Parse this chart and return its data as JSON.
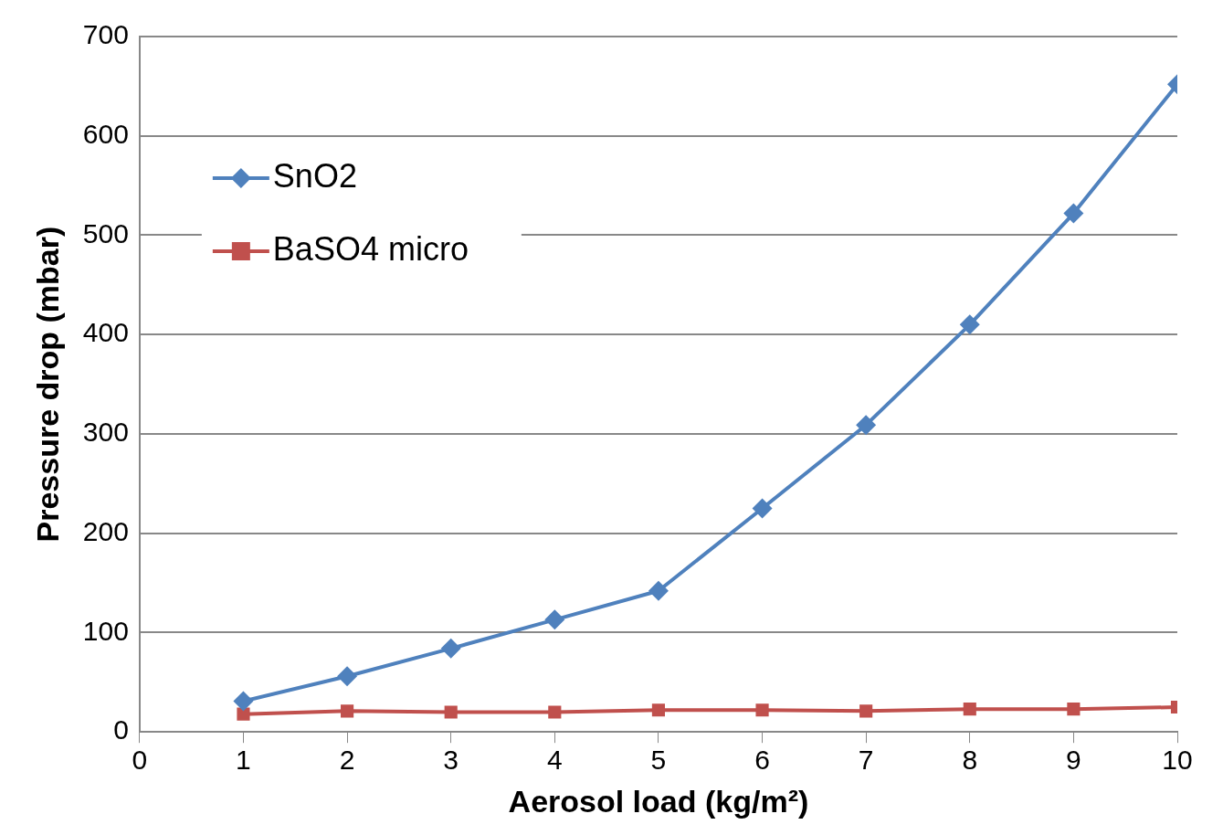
{
  "chart_data": {
    "type": "line",
    "xlabel": "Aerosol load (kg/m²)",
    "ylabel": "Pressure drop (mbar)",
    "x": [
      1,
      2,
      3,
      4,
      5,
      6,
      7,
      8,
      9,
      10
    ],
    "series": [
      {
        "name": "SnO2",
        "color": "#4f81bd",
        "marker": "diamond",
        "values": [
          31,
          56,
          84,
          113,
          142,
          225,
          309,
          410,
          522,
          652
        ]
      },
      {
        "name": "BaSO4 micro",
        "color": "#c0504d",
        "marker": "square",
        "values": [
          18,
          21,
          20,
          20,
          22,
          22,
          21,
          23,
          23,
          25
        ]
      }
    ],
    "xlim": [
      0,
      10
    ],
    "xticks": [
      0,
      1,
      2,
      3,
      4,
      5,
      6,
      7,
      8,
      9,
      10
    ],
    "ylim": [
      0,
      700
    ],
    "yticks": [
      0,
      100,
      200,
      300,
      400,
      500,
      600,
      700
    ],
    "grid": "y",
    "legend": "top left",
    "line_style": "solid"
  }
}
